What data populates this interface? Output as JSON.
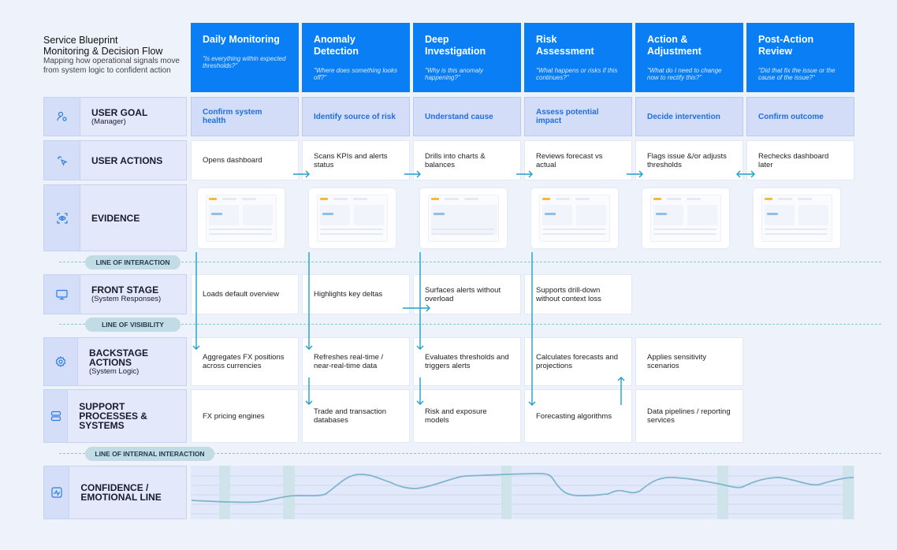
{
  "header": {
    "title_line1": "Service Blueprint",
    "title_line2": "Monitoring & Decision Flow",
    "subtitle": "Mapping how operational signals move from system logic to confident action"
  },
  "stages": [
    {
      "name": "Daily Monitoring",
      "question": "\"Is everything within expected thresholds?\""
    },
    {
      "name": "Anomaly Detection",
      "question": "\"Where does something looks off?\""
    },
    {
      "name": "Deep Investigation",
      "question": "\"Why is this anomaly happening?\""
    },
    {
      "name": "Risk Assessment",
      "question": "\"What happens or risks if this continues?\""
    },
    {
      "name": "Action & Adjustment",
      "question": "\"What do I need to change now to rectify this?\""
    },
    {
      "name": "Post-Action Review",
      "question": "\"Did that fix the issue or the cause of the issue?\""
    }
  ],
  "rows": {
    "user_goal": {
      "label": "USER GOAL",
      "sub": "(Manager)",
      "icon": "user-icon",
      "cells": [
        "Confirm system health",
        "Identify source of risk",
        "Understand cause",
        "Assess potential impact",
        "Decide intervention",
        "Confirm outcome"
      ]
    },
    "user_actions": {
      "label": "USER ACTIONS",
      "icon": "click-icon",
      "cells": [
        "Opens dashboard",
        "Scans KPIs and alerts status",
        "Drills into charts & balances",
        "Reviews forecast vs actual",
        "Flags issue &/or adjusts thresholds",
        "Rechecks dashboard later"
      ]
    },
    "evidence": {
      "label": "EVIDENCE",
      "icon": "eye-scan-icon"
    },
    "front_stage": {
      "label": "FRONT STAGE",
      "sub": "(System Responses)",
      "icon": "monitor-icon",
      "cells": [
        "Loads default overview",
        "Highlights key deltas",
        "Surfaces alerts without overload",
        "Supports drill-down without context loss"
      ]
    },
    "backstage": {
      "label": "BACKSTAGE ACTIONS",
      "sub": "(System Logic)",
      "icon": "gear-icon",
      "cells": [
        "Aggregates FX positions across currencies",
        "Refreshes real-time / near-real-time data",
        "Evaluates thresholds and triggers alerts",
        "Calculates forecasts and projections",
        "Applies sensitivity scenarios"
      ]
    },
    "support": {
      "label": "SUPPORT PROCESSES & SYSTEMS",
      "icon": "server-icon",
      "cells": [
        "FX pricing engines",
        "Trade and transaction databases",
        "Risk and exposure models",
        "Forecasting algorithms",
        "Data pipelines / reporting services"
      ]
    },
    "confidence": {
      "label": "CONFIDENCE / EMOTIONAL LINE",
      "icon": "pulse-icon"
    }
  },
  "lines": {
    "interaction": "LINE OF INTERACTION",
    "visibility": "LINE OF VISIBILITY",
    "internal": "LINE OF INTERNAL INTERACTION"
  },
  "colors": {
    "stage_blue": "#0a7ef5",
    "goal_text": "#1f6fe0",
    "arrow": "#1ea0c8",
    "emotion_line": "#7fb6cc"
  }
}
